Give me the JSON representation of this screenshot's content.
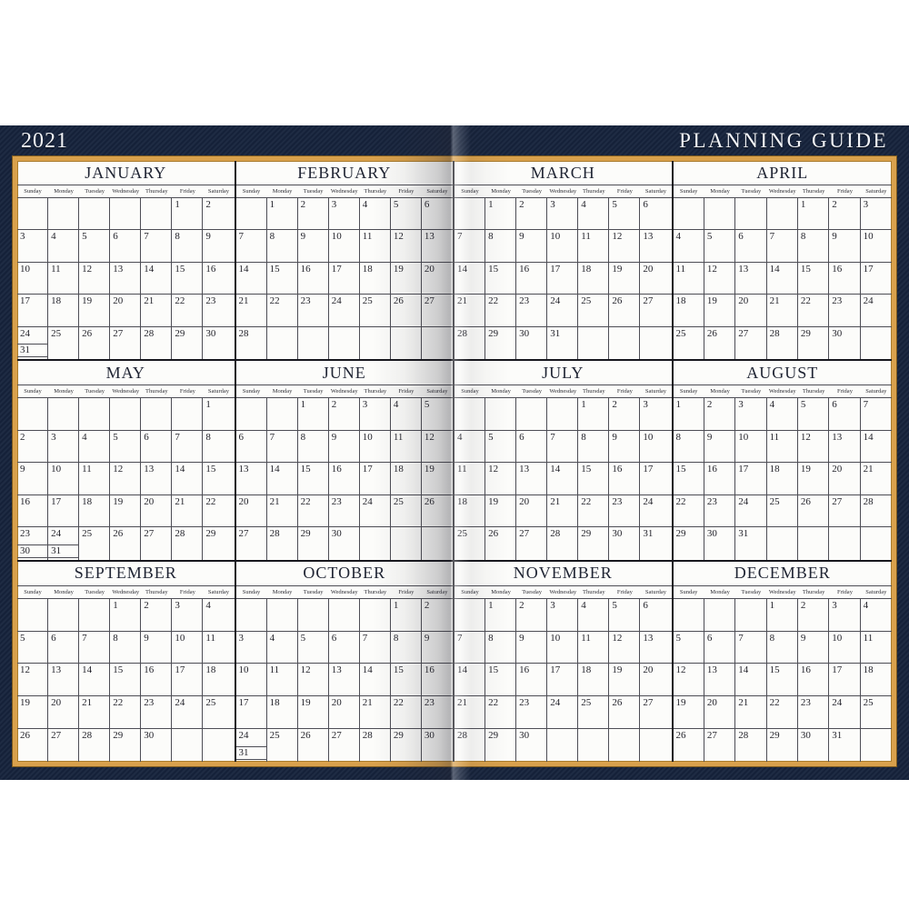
{
  "page": {
    "year": "2021",
    "title": "PLANNING GUIDE"
  },
  "colors": {
    "navy": "#16233c",
    "gold": "#d9a14c",
    "paper": "#fcfcfa",
    "grid": "#4d4d55",
    "text": "#23232b"
  },
  "calendar": {
    "day_headers": [
      "Sunday",
      "Monday",
      "Tuesday",
      "Wednesday",
      "Thursday",
      "Friday",
      "Saturday"
    ],
    "months": [
      {
        "name": "JANUARY",
        "weeks": [
          [
            "",
            "",
            "",
            "",
            "",
            "1",
            "2"
          ],
          [
            "3",
            "4",
            "5",
            "6",
            "7",
            "8",
            "9"
          ],
          [
            "10",
            "11",
            "12",
            "13",
            "14",
            "15",
            "16"
          ],
          [
            "17",
            "18",
            "19",
            "20",
            "21",
            "22",
            "23"
          ],
          [
            "24/31",
            "25",
            "26",
            "27",
            "28",
            "29",
            "30"
          ]
        ]
      },
      {
        "name": "FEBRUARY",
        "weeks": [
          [
            "",
            "1",
            "2",
            "3",
            "4",
            "5",
            "6"
          ],
          [
            "7",
            "8",
            "9",
            "10",
            "11",
            "12",
            "13"
          ],
          [
            "14",
            "15",
            "16",
            "17",
            "18",
            "19",
            "20"
          ],
          [
            "21",
            "22",
            "23",
            "24",
            "25",
            "26",
            "27"
          ],
          [
            "28",
            "",
            "",
            "",
            "",
            "",
            ""
          ]
        ]
      },
      {
        "name": "MARCH",
        "weeks": [
          [
            "",
            "1",
            "2",
            "3",
            "4",
            "5",
            "6"
          ],
          [
            "7",
            "8",
            "9",
            "10",
            "11",
            "12",
            "13"
          ],
          [
            "14",
            "15",
            "16",
            "17",
            "18",
            "19",
            "20"
          ],
          [
            "21",
            "22",
            "23",
            "24",
            "25",
            "26",
            "27"
          ],
          [
            "28",
            "29",
            "30",
            "31",
            "",
            "",
            ""
          ]
        ]
      },
      {
        "name": "APRIL",
        "weeks": [
          [
            "",
            "",
            "",
            "",
            "1",
            "2",
            "3"
          ],
          [
            "4",
            "5",
            "6",
            "7",
            "8",
            "9",
            "10"
          ],
          [
            "11",
            "12",
            "13",
            "14",
            "15",
            "16",
            "17"
          ],
          [
            "18",
            "19",
            "20",
            "21",
            "22",
            "23",
            "24"
          ],
          [
            "25",
            "26",
            "27",
            "28",
            "29",
            "30",
            ""
          ]
        ]
      },
      {
        "name": "MAY",
        "weeks": [
          [
            "",
            "",
            "",
            "",
            "",
            "",
            "1"
          ],
          [
            "2",
            "3",
            "4",
            "5",
            "6",
            "7",
            "8"
          ],
          [
            "9",
            "10",
            "11",
            "12",
            "13",
            "14",
            "15"
          ],
          [
            "16",
            "17",
            "18",
            "19",
            "20",
            "21",
            "22"
          ],
          [
            "23/30",
            "24/31",
            "25",
            "26",
            "27",
            "28",
            "29"
          ]
        ]
      },
      {
        "name": "JUNE",
        "weeks": [
          [
            "",
            "",
            "1",
            "2",
            "3",
            "4",
            "5"
          ],
          [
            "6",
            "7",
            "8",
            "9",
            "10",
            "11",
            "12"
          ],
          [
            "13",
            "14",
            "15",
            "16",
            "17",
            "18",
            "19"
          ],
          [
            "20",
            "21",
            "22",
            "23",
            "24",
            "25",
            "26"
          ],
          [
            "27",
            "28",
            "29",
            "30",
            "",
            "",
            ""
          ]
        ]
      },
      {
        "name": "JULY",
        "weeks": [
          [
            "",
            "",
            "",
            "",
            "1",
            "2",
            "3"
          ],
          [
            "4",
            "5",
            "6",
            "7",
            "8",
            "9",
            "10"
          ],
          [
            "11",
            "12",
            "13",
            "14",
            "15",
            "16",
            "17"
          ],
          [
            "18",
            "19",
            "20",
            "21",
            "22",
            "23",
            "24"
          ],
          [
            "25",
            "26",
            "27",
            "28",
            "29",
            "30",
            "31"
          ]
        ]
      },
      {
        "name": "AUGUST",
        "weeks": [
          [
            "1",
            "2",
            "3",
            "4",
            "5",
            "6",
            "7"
          ],
          [
            "8",
            "9",
            "10",
            "11",
            "12",
            "13",
            "14"
          ],
          [
            "15",
            "16",
            "17",
            "18",
            "19",
            "20",
            "21"
          ],
          [
            "22",
            "23",
            "24",
            "25",
            "26",
            "27",
            "28"
          ],
          [
            "29",
            "30",
            "31",
            "",
            "",
            "",
            ""
          ]
        ]
      },
      {
        "name": "SEPTEMBER",
        "weeks": [
          [
            "",
            "",
            "",
            "1",
            "2",
            "3",
            "4"
          ],
          [
            "5",
            "6",
            "7",
            "8",
            "9",
            "10",
            "11"
          ],
          [
            "12",
            "13",
            "14",
            "15",
            "16",
            "17",
            "18"
          ],
          [
            "19",
            "20",
            "21",
            "22",
            "23",
            "24",
            "25"
          ],
          [
            "26",
            "27",
            "28",
            "29",
            "30",
            "",
            ""
          ]
        ]
      },
      {
        "name": "OCTOBER",
        "weeks": [
          [
            "",
            "",
            "",
            "",
            "",
            "1",
            "2"
          ],
          [
            "3",
            "4",
            "5",
            "6",
            "7",
            "8",
            "9"
          ],
          [
            "10",
            "11",
            "12",
            "13",
            "14",
            "15",
            "16"
          ],
          [
            "17",
            "18",
            "19",
            "20",
            "21",
            "22",
            "23"
          ],
          [
            "24/31",
            "25",
            "26",
            "27",
            "28",
            "29",
            "30"
          ]
        ]
      },
      {
        "name": "NOVEMBER",
        "weeks": [
          [
            "",
            "1",
            "2",
            "3",
            "4",
            "5",
            "6"
          ],
          [
            "7",
            "8",
            "9",
            "10",
            "11",
            "12",
            "13"
          ],
          [
            "14",
            "15",
            "16",
            "17",
            "18",
            "19",
            "20"
          ],
          [
            "21",
            "22",
            "23",
            "24",
            "25",
            "26",
            "27"
          ],
          [
            "28",
            "29",
            "30",
            "",
            "",
            "",
            ""
          ]
        ]
      },
      {
        "name": "DECEMBER",
        "weeks": [
          [
            "",
            "",
            "",
            "1",
            "2",
            "3",
            "4"
          ],
          [
            "5",
            "6",
            "7",
            "8",
            "9",
            "10",
            "11"
          ],
          [
            "12",
            "13",
            "14",
            "15",
            "16",
            "17",
            "18"
          ],
          [
            "19",
            "20",
            "21",
            "22",
            "23",
            "24",
            "25"
          ],
          [
            "26",
            "27",
            "28",
            "29",
            "30",
            "31",
            ""
          ]
        ]
      }
    ]
  }
}
